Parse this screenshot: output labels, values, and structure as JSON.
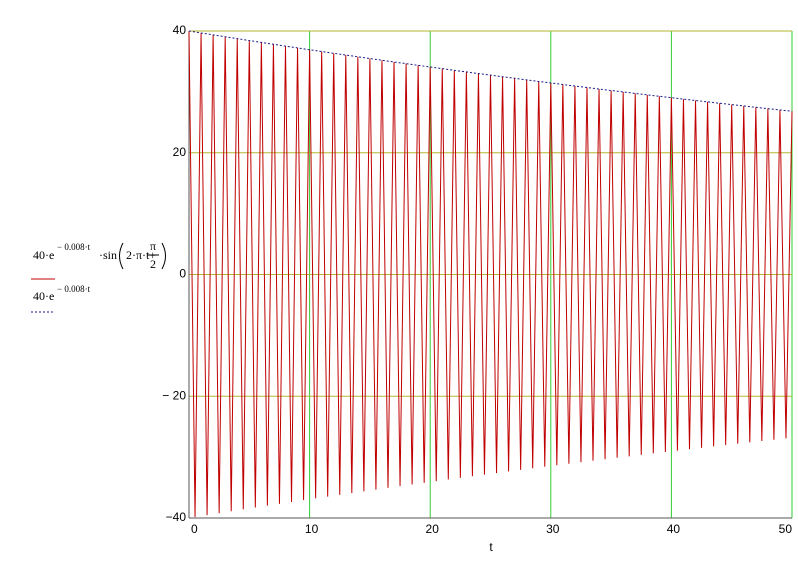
{
  "chart_data": {
    "type": "line",
    "x_label": "t",
    "x": [
      0,
      0.5,
      1,
      1.5,
      2,
      2.5,
      3,
      3.5,
      4,
      4.5,
      5,
      5.5,
      6,
      6.5,
      7,
      7.5,
      8,
      8.5,
      9,
      9.5,
      10,
      10.5,
      11,
      11.5,
      12,
      12.5,
      13,
      13.5,
      14,
      14.5,
      15,
      15.5,
      16,
      16.5,
      17,
      17.5,
      18,
      18.5,
      19,
      19.5,
      20,
      20.5,
      21,
      21.5,
      22,
      22.5,
      23,
      23.5,
      24,
      24.5,
      25,
      25.5,
      26,
      26.5,
      27,
      27.5,
      28,
      28.5,
      29,
      29.5,
      30,
      30.5,
      31,
      31.5,
      32,
      32.5,
      33,
      33.5,
      34,
      34.5,
      35,
      35.5,
      36,
      36.5,
      37,
      37.5,
      38,
      38.5,
      39,
      39.5,
      40,
      40.5,
      41,
      41.5,
      42,
      42.5,
      43,
      43.5,
      44,
      44.5,
      45,
      45.5,
      46,
      46.5,
      47,
      47.5,
      48,
      48.5,
      49,
      49.5,
      50
    ],
    "series": [
      {
        "name": [
          "40·e",
          "− 0.008·t",
          "·sin",
          "2·π·t+",
          "π",
          "2"
        ],
        "color": "#c00000",
        "dash": "none",
        "values": [
          40,
          -39.84,
          39.68,
          -39.52,
          39.37,
          -39.21,
          39.05,
          -38.9,
          38.74,
          -38.59,
          38.43,
          -38.28,
          38.13,
          -37.97,
          37.82,
          -37.67,
          37.52,
          -37.37,
          37.22,
          -37.07,
          36.92,
          -36.78,
          36.63,
          -36.48,
          36.34,
          -36.19,
          36.05,
          -35.91,
          35.76,
          -35.62,
          35.48,
          -35.34,
          35.19,
          -35.05,
          34.91,
          -34.77,
          34.64,
          -34.5,
          34.36,
          -34.22,
          34.09,
          -33.95,
          33.81,
          -33.68,
          33.54,
          -33.41,
          33.28,
          -33.14,
          33.01,
          -32.88,
          32.75,
          -32.62,
          32.49,
          -32.36,
          32.23,
          -32.1,
          31.97,
          -31.84,
          31.71,
          -31.59,
          31.46,
          -31.34,
          31.21,
          -31.08,
          30.96,
          -30.84,
          30.71,
          -30.59,
          30.47,
          -30.35,
          30.23,
          -30.11,
          29.99,
          -29.87,
          29.75,
          -29.63,
          29.51,
          -29.39,
          29.28,
          -29.16,
          29.05,
          -28.93,
          28.81,
          -28.7,
          28.58,
          -28.47,
          28.36,
          -28.24,
          28.13,
          -28.02,
          27.91,
          -27.8,
          27.69,
          -27.58,
          27.47,
          -27.35,
          27.25,
          -27.14,
          27.03,
          -26.92,
          26.81
        ]
      },
      {
        "name": [
          "40·e",
          "− 0.008·t"
        ],
        "color": "#1a1a8c",
        "dash": "2 2",
        "values": [
          40,
          39.84,
          39.68,
          39.52,
          39.37,
          39.21,
          39.05,
          38.9,
          38.74,
          38.59,
          38.43,
          38.28,
          38.13,
          37.97,
          37.82,
          37.67,
          37.52,
          37.37,
          37.22,
          37.07,
          36.92,
          36.78,
          36.63,
          36.48,
          36.34,
          36.19,
          36.05,
          35.91,
          35.76,
          35.62,
          35.48,
          35.34,
          35.19,
          35.05,
          34.91,
          34.77,
          34.64,
          34.5,
          34.36,
          34.22,
          34.09,
          33.95,
          33.81,
          33.68,
          33.54,
          33.41,
          33.28,
          33.14,
          33.01,
          32.88,
          32.75,
          32.62,
          32.49,
          32.36,
          32.23,
          32.1,
          31.97,
          31.84,
          31.71,
          31.59,
          31.46,
          31.34,
          31.21,
          31.08,
          30.96,
          30.84,
          30.71,
          30.59,
          30.47,
          30.35,
          30.23,
          30.11,
          29.99,
          29.87,
          29.75,
          29.63,
          29.51,
          29.39,
          29.28,
          29.16,
          29.05,
          28.93,
          28.81,
          28.7,
          28.58,
          28.47,
          28.36,
          28.24,
          28.13,
          28.02,
          27.91,
          27.8,
          27.69,
          27.58,
          27.47,
          27.35,
          27.25,
          27.14,
          27.03,
          26.92,
          26.81
        ]
      }
    ],
    "xlim": [
      0,
      50
    ],
    "xticks": [
      0,
      10,
      20,
      30,
      40,
      50
    ],
    "ylim": [
      -40,
      40
    ],
    "yticks": [
      {
        "value": -40,
        "label": "−40"
      },
      {
        "value": -20,
        "label": "− 20"
      },
      0,
      20,
      40
    ],
    "xgrid_color": "#33cc33",
    "ygrid_color": "#b5b530"
  }
}
